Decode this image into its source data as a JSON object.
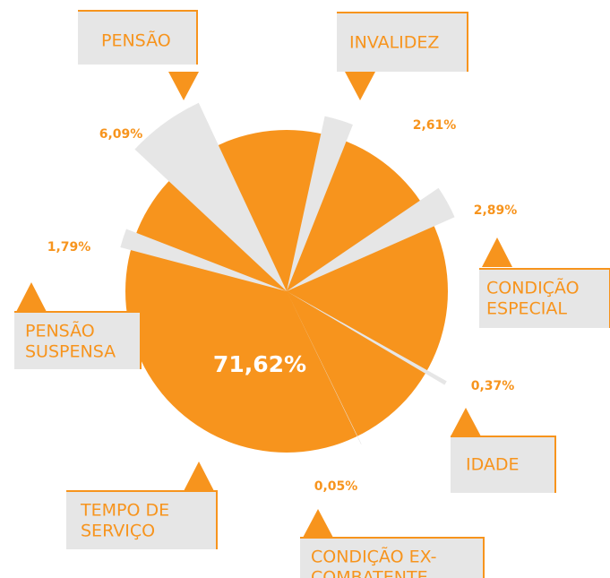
{
  "chart_data": {
    "type": "pie",
    "categories": [
      [
        "PENSÃO"
      ],
      [
        "INVALIDEZ"
      ],
      [
        "CONDIÇÃO",
        "ESPECIAL"
      ],
      [
        "IDADE"
      ],
      [
        "CONDIÇÃO EX-",
        "COMBATENTE"
      ],
      [
        "TEMPO DE",
        "SERVIÇO"
      ],
      [
        "PENSÃO",
        "SUSPENSA"
      ]
    ],
    "values": [
      6.09,
      2.61,
      2.89,
      0.37,
      0.05,
      71.62,
      1.79
    ],
    "value_labels": [
      "6,09%",
      "2,61%",
      "2,89%",
      "0,37%",
      "0,05%",
      "71,62%",
      "1,79%"
    ],
    "colors": [
      "#e6e6e6",
      "#e6e6e6",
      "#e6e6e6",
      "#e6e6e6",
      "#e6e6e6",
      "#f7941d",
      "#e6e6e6"
    ]
  }
}
